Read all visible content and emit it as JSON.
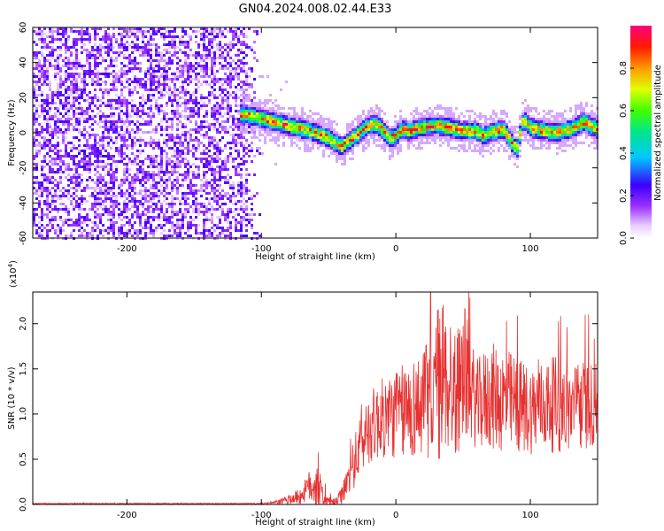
{
  "title": "GN04.2024.008.02.44.E33",
  "chart_data": [
    {
      "type": "heatmap",
      "xlabel": "Height of straight line (km)",
      "ylabel": "Frequency (Hz)",
      "xlim": [
        -270,
        150
      ],
      "ylim": [
        -60,
        60
      ],
      "x_ticks": [
        -200,
        -100,
        0,
        100
      ],
      "y_ticks": [
        -60,
        -40,
        -20,
        0,
        20,
        40,
        60
      ],
      "x_tick_labels": [
        "-200",
        "-100",
        "0",
        "100"
      ],
      "y_tick_labels": [
        "-60",
        "-40",
        "-20",
        "0",
        "20",
        "40",
        "60"
      ],
      "noise_region": [
        -270,
        -100
      ],
      "ridge": {
        "x": [
          -110,
          -100,
          -90,
          -80,
          -70,
          -60,
          -50,
          -45,
          -40,
          -35,
          -30,
          -20,
          -15,
          -10,
          -5,
          0,
          5,
          10,
          20,
          30,
          40,
          45,
          50,
          60,
          65,
          70,
          80,
          85,
          90,
          95,
          100,
          110,
          120,
          130,
          140,
          150
        ],
        "freq": [
          10,
          8,
          6,
          4,
          2,
          0,
          -3,
          -6,
          -8,
          -5,
          -2,
          4,
          5,
          2,
          -3,
          -2,
          2,
          1,
          3,
          4,
          3,
          2,
          1,
          1,
          -2,
          0,
          2,
          -4,
          -10,
          8,
          3,
          1,
          0,
          2,
          6,
          2
        ]
      },
      "colorbar": {
        "label": "Normalized spectral amplitude",
        "range": [
          0,
          1
        ],
        "ticks": [
          0.0,
          0.2,
          0.4,
          0.6,
          0.8
        ],
        "tick_labels": [
          "0.0",
          "0.2",
          "0.4",
          "0.6",
          "0.8"
        ]
      }
    },
    {
      "type": "line",
      "xlabel": "Height of straight line (km)",
      "ylabel": "SNR (10 * v/v)",
      "y_multiplier": "(x10",
      "y_multiplier_exp": "4",
      "y_multiplier_close": ")",
      "xlim": [
        -270,
        150
      ],
      "ylim": [
        0,
        2.35
      ],
      "x_ticks": [
        -200,
        -100,
        0,
        100
      ],
      "y_ticks": [
        0,
        0.5,
        1.0,
        1.5,
        2.0
      ],
      "x_tick_labels": [
        "-200",
        "-100",
        "0",
        "100"
      ],
      "y_tick_labels": [
        "0.0",
        "0.5",
        "1.0",
        "1.5",
        "2.0"
      ],
      "color": "#e83030",
      "envelope": {
        "x": [
          -270,
          -100,
          -90,
          -80,
          -70,
          -65,
          -60,
          -55,
          -50,
          -45,
          -40,
          -35,
          -30,
          -25,
          -20,
          -10,
          0,
          10,
          20,
          25,
          30,
          35,
          40,
          45,
          50,
          55,
          60,
          70,
          80,
          90,
          100,
          110,
          120,
          130,
          140,
          150
        ],
        "base": [
          0.01,
          0.01,
          0.02,
          0.05,
          0.1,
          0.2,
          0.25,
          0.1,
          0.03,
          0.02,
          0.1,
          0.3,
          0.5,
          0.7,
          0.85,
          0.95,
          1.0,
          1.05,
          1.1,
          1.2,
          1.3,
          1.4,
          1.35,
          1.2,
          1.5,
          1.3,
          1.1,
          1.2,
          1.15,
          1.1,
          1.05,
          1.1,
          1.1,
          1.05,
          1.1,
          1.1
        ],
        "amp": [
          0.005,
          0.005,
          0.02,
          0.05,
          0.1,
          0.15,
          0.35,
          0.15,
          0.05,
          0.05,
          0.1,
          0.2,
          0.3,
          0.35,
          0.4,
          0.45,
          0.5,
          0.55,
          0.6,
          0.7,
          0.9,
          0.9,
          0.8,
          0.7,
          0.8,
          0.6,
          0.5,
          0.6,
          0.6,
          0.55,
          0.5,
          0.5,
          0.55,
          0.5,
          0.5,
          0.45
        ]
      }
    }
  ]
}
